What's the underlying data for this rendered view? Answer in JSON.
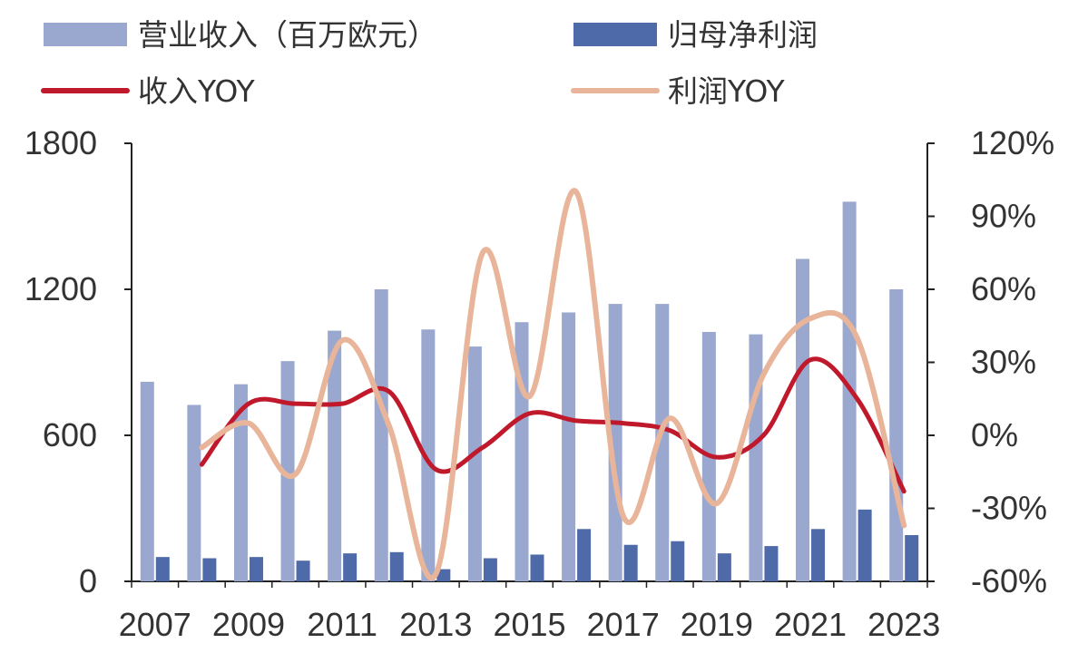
{
  "chart_data": {
    "type": "bar",
    "categories": [
      "2007",
      "2008",
      "2009",
      "2010",
      "2011",
      "2012",
      "2013",
      "2014",
      "2015",
      "2016",
      "2017",
      "2018",
      "2019",
      "2020",
      "2021",
      "2022",
      "2023"
    ],
    "x_tick_labels": [
      "2007",
      "2009",
      "2011",
      "2013",
      "2015",
      "2017",
      "2019",
      "2021",
      "2023"
    ],
    "left_axis": {
      "ylim": [
        0,
        1800
      ],
      "ticks": [
        "0",
        "600",
        "1200",
        "1800"
      ]
    },
    "right_axis": {
      "ylim": [
        -60,
        120
      ],
      "ticks": [
        "-60%",
        "-30%",
        "0%",
        "30%",
        "60%",
        "90%",
        "120%"
      ]
    },
    "legend": [
      {
        "label": "营业收入（百万欧元）",
        "kind": "bar",
        "color": "#9aa8cf"
      },
      {
        "label": "归母净利润",
        "kind": "bar",
        "color": "#4e6aa8"
      },
      {
        "label": "收入YOY",
        "kind": "line",
        "color": "#c0192c"
      },
      {
        "label": "利润YOY",
        "kind": "line",
        "color": "#e8b59a"
      }
    ],
    "series": [
      {
        "name": "营业收入（百万欧元）",
        "axis": "left",
        "type": "bar",
        "color": "#9aa8cf",
        "values": [
          820,
          725,
          810,
          905,
          1030,
          1200,
          1035,
          965,
          1065,
          1105,
          1140,
          1140,
          1025,
          1015,
          1325,
          1560,
          1200
        ]
      },
      {
        "name": "归母净利润",
        "axis": "left",
        "type": "bar",
        "color": "#4e6aa8",
        "values": [
          100,
          95,
          100,
          85,
          115,
          120,
          50,
          95,
          110,
          215,
          150,
          165,
          115,
          145,
          215,
          295,
          190
        ]
      },
      {
        "name": "收入YOY",
        "axis": "right",
        "type": "line",
        "color": "#c0192c",
        "values": [
          null,
          -12,
          13,
          13,
          13,
          18,
          -14,
          -5,
          9,
          6,
          5,
          2,
          -9,
          0,
          31,
          15,
          -23
        ]
      },
      {
        "name": "利润YOY",
        "axis": "right",
        "type": "line",
        "color": "#e8b59a",
        "values": [
          null,
          -5,
          5,
          -16,
          39,
          4,
          -57,
          75,
          16,
          100,
          -33,
          7,
          -28,
          25,
          48,
          40,
          -37
        ]
      }
    ]
  }
}
